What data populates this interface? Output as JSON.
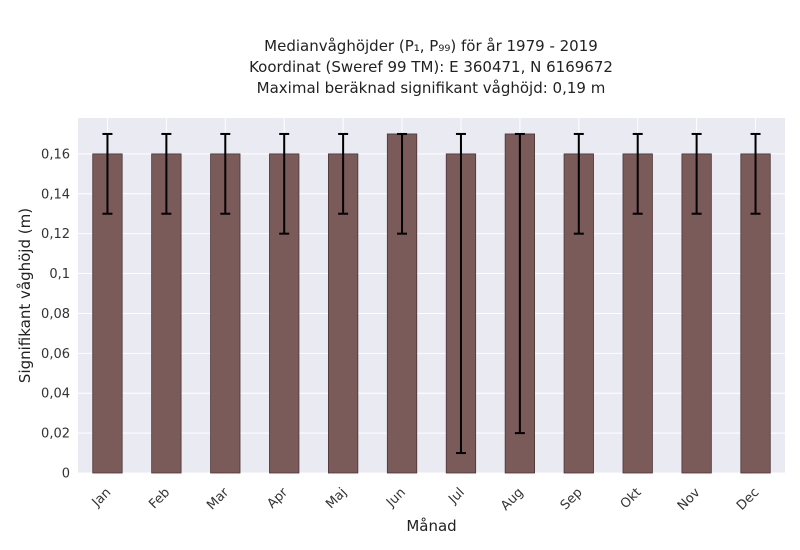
{
  "chart_data": {
    "type": "bar",
    "title_lines": [
      "Medianvåghöjder (P₁, P₉₉) för år 1979 - 2019",
      "Koordinat (Sweref 99 TM): E 360471, N 6169672",
      "Maximal beräknad signifikant våghöjd: 0,19 m"
    ],
    "xlabel": "Månad",
    "ylabel": "Signifikant våghöjd (m)",
    "categories": [
      "Jan",
      "Feb",
      "Mar",
      "Apr",
      "Maj",
      "Jun",
      "Jul",
      "Aug",
      "Sep",
      "Okt",
      "Nov",
      "Dec"
    ],
    "values": [
      0.16,
      0.16,
      0.16,
      0.16,
      0.16,
      0.17,
      0.16,
      0.17,
      0.16,
      0.16,
      0.16,
      0.16
    ],
    "err_low": [
      0.13,
      0.13,
      0.13,
      0.12,
      0.13,
      0.12,
      0.01,
      0.02,
      0.12,
      0.13,
      0.13,
      0.13
    ],
    "err_high": [
      0.17,
      0.17,
      0.17,
      0.17,
      0.17,
      0.17,
      0.17,
      0.17,
      0.17,
      0.17,
      0.17,
      0.17
    ],
    "ylim": [
      0,
      0.178
    ],
    "yticks": [
      0,
      0.02,
      0.04,
      0.06,
      0.08,
      0.1,
      0.12,
      0.14,
      0.16
    ],
    "ytick_labels": [
      "0",
      "0,02",
      "0,04",
      "0,06",
      "0,08",
      "0,1",
      "0,12",
      "0,14",
      "0,16"
    ],
    "grid": true,
    "bar_color": "#7b5a5a",
    "bar_edge_color": "#4a3535",
    "error_color": "#000000",
    "background_color": "#eaeaf2",
    "grid_color": "#ffffff"
  }
}
